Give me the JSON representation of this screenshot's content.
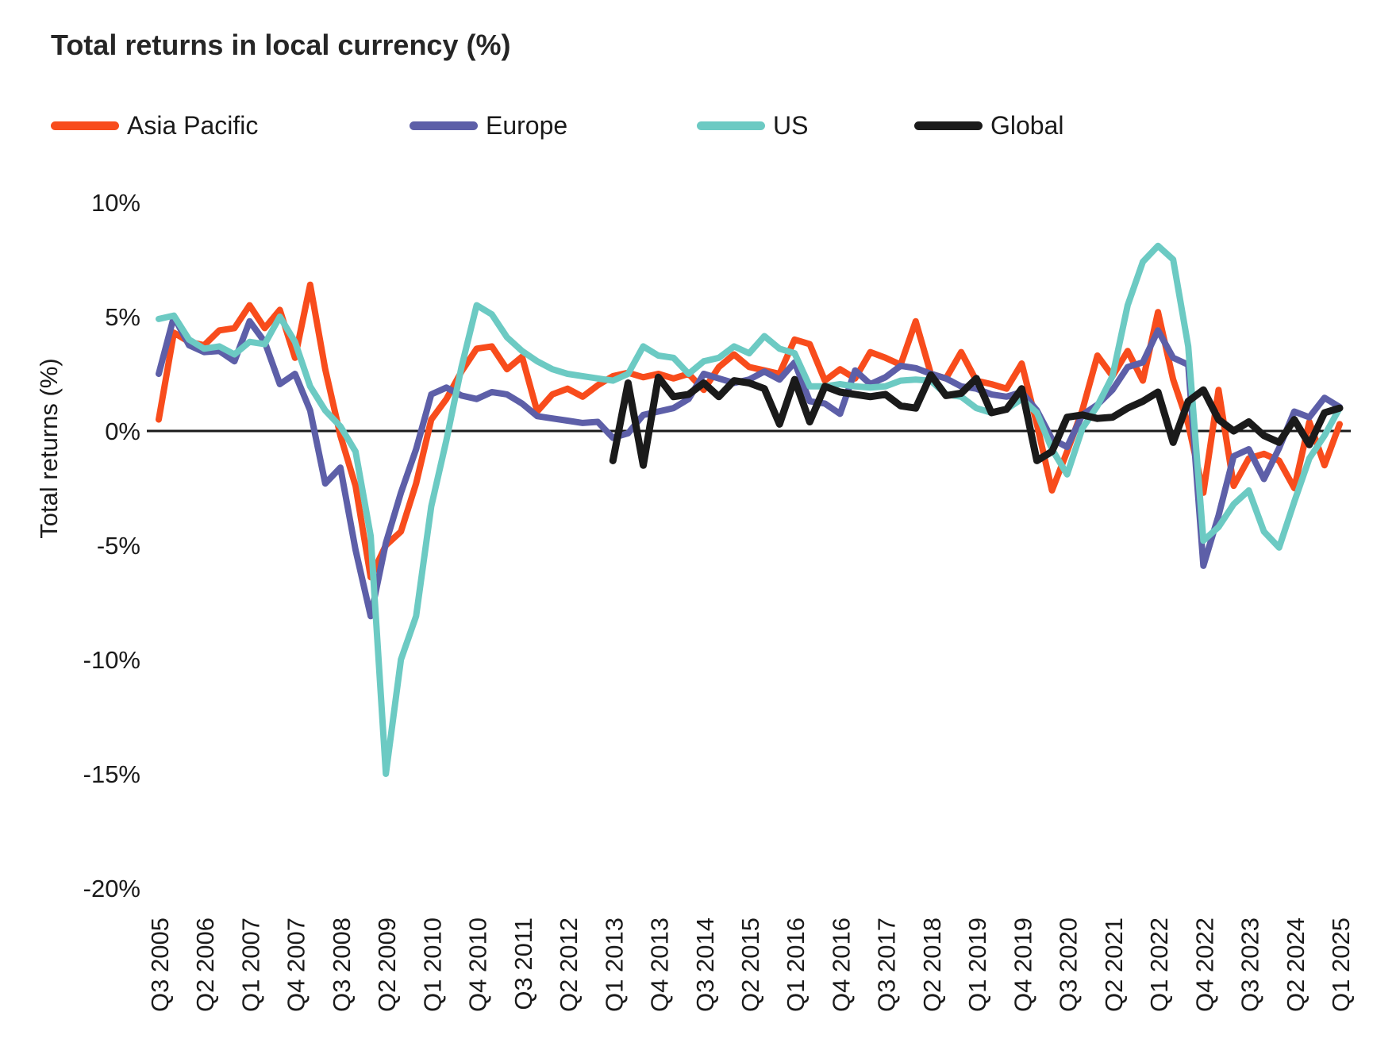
{
  "title": "Total returns in local currency (%)",
  "legend": [
    {
      "label": "Asia Pacific",
      "color": "#F84C1C"
    },
    {
      "label": "Europe",
      "color": "#5D5FA8"
    },
    {
      "label": "US",
      "color": "#6CCAC3"
    },
    {
      "label": "Global",
      "color": "#1A1A1A"
    }
  ],
  "y_axis": {
    "title": "Total returns (%)",
    "tick_labels": [
      "10%",
      "5%",
      "0%",
      "-5%",
      "-10%",
      "-15%",
      "-20%"
    ],
    "tick_values": [
      10,
      5,
      0,
      -5,
      -10,
      -15,
      -20
    ]
  },
  "x_axis": {
    "tick_labels": [
      "Q3 2005",
      "Q2 2006",
      "Q1 2007",
      "Q4 2007",
      "Q3 2008",
      "Q2 2009",
      "Q1 2010",
      "Q4 2010",
      "Q3 2011",
      "Q2 2012",
      "Q1 2013",
      "Q4 2013",
      "Q3 2014",
      "Q2 2015",
      "Q1 2016",
      "Q4 2016",
      "Q3 2017",
      "Q2 2018",
      "Q1 2019",
      "Q4 2019",
      "Q3 2020",
      "Q2 2021",
      "Q1 2022",
      "Q4 2022",
      "Q3 2023",
      "Q2 2024",
      "Q1 2025"
    ],
    "tick_every_n_quarters": 3
  },
  "chart_data": {
    "type": "line",
    "title": "Total returns in local currency (%)",
    "xlabel": "",
    "ylabel": "Total returns (%)",
    "ylim": [
      -20,
      10
    ],
    "grid": false,
    "legend_position": "top",
    "categories": [
      "Q3 2005",
      "Q4 2005",
      "Q1 2006",
      "Q2 2006",
      "Q3 2006",
      "Q4 2006",
      "Q1 2007",
      "Q2 2007",
      "Q3 2007",
      "Q4 2007",
      "Q1 2008",
      "Q2 2008",
      "Q3 2008",
      "Q4 2008",
      "Q1 2009",
      "Q2 2009",
      "Q3 2009",
      "Q4 2009",
      "Q1 2010",
      "Q2 2010",
      "Q3 2010",
      "Q4 2010",
      "Q1 2011",
      "Q2 2011",
      "Q3 2011",
      "Q4 2011",
      "Q1 2012",
      "Q2 2012",
      "Q3 2012",
      "Q4 2012",
      "Q1 2013",
      "Q2 2013",
      "Q3 2013",
      "Q4 2013",
      "Q1 2014",
      "Q2 2014",
      "Q3 2014",
      "Q4 2014",
      "Q1 2015",
      "Q2 2015",
      "Q3 2015",
      "Q4 2015",
      "Q1 2016",
      "Q2 2016",
      "Q3 2016",
      "Q4 2016",
      "Q1 2017",
      "Q2 2017",
      "Q3 2017",
      "Q4 2017",
      "Q1 2018",
      "Q2 2018",
      "Q3 2018",
      "Q4 2018",
      "Q1 2019",
      "Q2 2019",
      "Q3 2019",
      "Q4 2019",
      "Q1 2020",
      "Q2 2020",
      "Q3 2020",
      "Q4 2020",
      "Q1 2021",
      "Q2 2021",
      "Q3 2021",
      "Q4 2021",
      "Q1 2022",
      "Q2 2022",
      "Q3 2022",
      "Q4 2022",
      "Q1 2023",
      "Q2 2023",
      "Q3 2023",
      "Q4 2023",
      "Q1 2024",
      "Q2 2024",
      "Q3 2024",
      "Q4 2024",
      "Q1 2025"
    ],
    "series": [
      {
        "name": "Asia Pacific",
        "color": "#F84C1C",
        "values": [
          0.5,
          4.3,
          3.9,
          3.75,
          4.4,
          4.5,
          5.5,
          4.5,
          5.3,
          3.2,
          6.4,
          2.7,
          -0.2,
          -2.4,
          -6.4,
          -5.0,
          -4.4,
          -2.3,
          0.5,
          1.4,
          2.6,
          3.6,
          3.7,
          2.7,
          3.25,
          0.85,
          1.6,
          1.85,
          1.5,
          2.0,
          2.4,
          2.55,
          2.35,
          2.5,
          2.3,
          2.5,
          1.8,
          2.8,
          3.35,
          2.8,
          2.65,
          2.5,
          4.0,
          3.8,
          2.2,
          2.7,
          2.3,
          3.45,
          3.2,
          2.9,
          4.8,
          2.5,
          2.3,
          3.45,
          2.2,
          2.05,
          1.85,
          2.95,
          0.3,
          -2.6,
          -0.9,
          0.9,
          3.3,
          2.4,
          3.5,
          2.2,
          5.2,
          2.25,
          0.3,
          -2.7,
          1.8,
          -2.4,
          -1.2,
          -1.0,
          -1.3,
          -2.5,
          0.4,
          -1.5,
          0.3
        ]
      },
      {
        "name": "Europe",
        "color": "#5D5FA8",
        "values": [
          2.5,
          5.0,
          3.75,
          3.45,
          3.5,
          3.05,
          4.8,
          3.9,
          2.05,
          2.5,
          0.9,
          -2.3,
          -1.6,
          -5.2,
          -8.1,
          -4.9,
          -2.7,
          -0.8,
          1.6,
          1.9,
          1.55,
          1.4,
          1.7,
          1.6,
          1.2,
          0.65,
          0.55,
          0.45,
          0.35,
          0.4,
          -0.3,
          -0.1,
          0.7,
          0.85,
          1.0,
          1.4,
          2.5,
          2.3,
          2.1,
          2.25,
          2.6,
          2.25,
          3.0,
          1.3,
          1.2,
          0.75,
          2.65,
          2.05,
          2.35,
          2.85,
          2.75,
          2.5,
          2.3,
          1.95,
          1.85,
          1.6,
          1.5,
          1.7,
          0.9,
          -0.35,
          -0.7,
          0.7,
          1.15,
          1.8,
          2.8,
          3.0,
          4.4,
          3.2,
          2.9,
          -5.9,
          -3.7,
          -1.1,
          -0.8,
          -2.1,
          -0.75,
          0.85,
          0.6,
          1.45,
          1.05
        ]
      },
      {
        "name": "US",
        "color": "#6CCAC3",
        "values": [
          4.9,
          5.05,
          4.0,
          3.6,
          3.7,
          3.35,
          3.9,
          3.8,
          5.0,
          3.9,
          1.95,
          0.9,
          0.2,
          -0.9,
          -4.6,
          -15.0,
          -10.0,
          -8.1,
          -3.3,
          -0.4,
          2.8,
          5.5,
          5.1,
          4.1,
          3.5,
          3.05,
          2.7,
          2.5,
          2.4,
          2.3,
          2.2,
          2.5,
          3.7,
          3.3,
          3.2,
          2.5,
          3.05,
          3.2,
          3.7,
          3.4,
          4.15,
          3.6,
          3.4,
          1.95,
          1.95,
          2.05,
          1.95,
          1.9,
          1.95,
          2.2,
          2.25,
          2.2,
          1.6,
          1.5,
          1.0,
          0.8,
          0.95,
          1.4,
          0.8,
          -0.8,
          -1.9,
          0.1,
          1.1,
          2.4,
          5.5,
          7.4,
          8.1,
          7.5,
          3.7,
          -4.8,
          -4.2,
          -3.2,
          -2.6,
          -4.4,
          -5.1,
          -3.1,
          -1.2,
          -0.2,
          1.0
        ]
      },
      {
        "name": "Global",
        "color": "#1A1A1A",
        "values": [
          null,
          null,
          null,
          null,
          null,
          null,
          null,
          null,
          null,
          null,
          null,
          null,
          null,
          null,
          null,
          null,
          null,
          null,
          null,
          null,
          null,
          null,
          null,
          null,
          null,
          null,
          null,
          null,
          null,
          null,
          -1.3,
          2.1,
          -1.5,
          2.35,
          1.5,
          1.6,
          2.1,
          1.5,
          2.2,
          2.1,
          1.85,
          0.3,
          2.25,
          0.4,
          1.95,
          1.7,
          1.6,
          1.5,
          1.6,
          1.1,
          1.0,
          2.45,
          1.55,
          1.65,
          2.3,
          0.8,
          0.95,
          1.85,
          -1.3,
          -0.9,
          0.6,
          0.7,
          0.55,
          0.6,
          1.0,
          1.3,
          1.7,
          -0.5,
          1.3,
          1.8,
          0.5,
          0.0,
          0.4,
          -0.2,
          -0.5,
          0.5,
          -0.6,
          0.8,
          1.0
        ]
      }
    ]
  }
}
